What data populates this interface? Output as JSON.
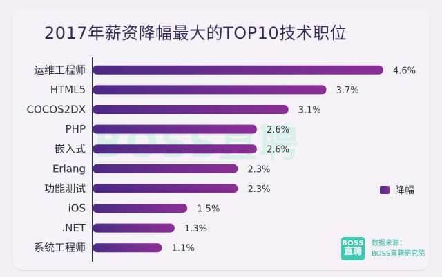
{
  "title": "2017年薪资降幅最大的TOP10技术职位",
  "watermark": "BOSS直聘",
  "legend": {
    "label": "降幅"
  },
  "source": {
    "logo_line1": "BOSS",
    "logo_line2": "直聘",
    "label": "数据来源：",
    "name": "BOSS直聘研究院"
  },
  "colors": {
    "bar_start": "#4b2a86",
    "bar_end": "#8b2f94",
    "axis": "#2f3140"
  },
  "chart_data": {
    "type": "bar",
    "orientation": "horizontal",
    "title": "2017年薪资降幅最大的TOP10技术职位",
    "categories": [
      "运维工程师",
      "HTML5",
      "COCOS2DX",
      "PHP",
      "嵌入式",
      "Erlang",
      "功能测试",
      "iOS",
      ".NET",
      "系统工程师"
    ],
    "series": [
      {
        "name": "降幅",
        "values": [
          4.6,
          3.7,
          3.1,
          2.6,
          2.6,
          2.3,
          2.3,
          1.5,
          1.3,
          1.1
        ],
        "labels": [
          "4.6%",
          "3.7%",
          "3.1%",
          "2.6%",
          "2.6%",
          "2.3%",
          "2.3%",
          "1.5%",
          "1.3%",
          "1.1%"
        ]
      }
    ],
    "xlim": [
      0,
      4.6
    ],
    "grid": false,
    "legend_position": "right"
  }
}
